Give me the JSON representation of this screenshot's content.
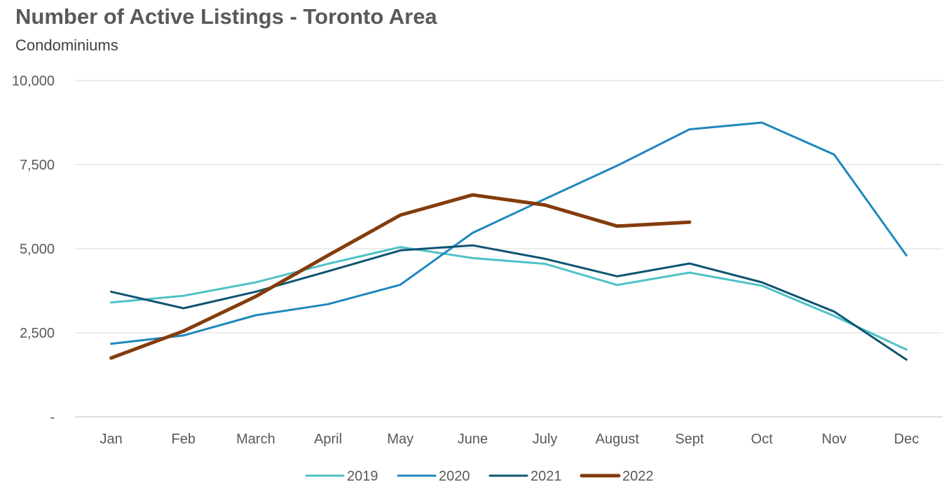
{
  "chart_data": {
    "type": "line",
    "title": "Number of Active Listings - Toronto Area",
    "subtitle": "Condominiums",
    "xlabel": "",
    "ylabel": "",
    "categories": [
      "Jan",
      "Feb",
      "March",
      "April",
      "May",
      "June",
      "July",
      "August",
      "Sept",
      "Oct",
      "Nov",
      "Dec"
    ],
    "ylim": [
      0,
      10000
    ],
    "yticks": [
      0,
      2500,
      5000,
      7500,
      10000
    ],
    "ytick_labels": [
      "-",
      "2,500",
      "5,000",
      "7,500",
      "10,000"
    ],
    "grid": true,
    "legend_position": "bottom",
    "series": [
      {
        "name": "2019",
        "color": "#4fc1c6",
        "width": 3,
        "values": [
          3400,
          3600,
          4000,
          4550,
          5050,
          4720,
          4550,
          3920,
          4290,
          3900,
          3000,
          2000
        ]
      },
      {
        "name": "2020",
        "color": "#1e88bd",
        "width": 3,
        "values": [
          2170,
          2420,
          3020,
          3350,
          3930,
          5470,
          6480,
          7470,
          8550,
          8750,
          7800,
          4800
        ]
      },
      {
        "name": "2021",
        "color": "#0d5472",
        "width": 3,
        "values": [
          3720,
          3230,
          3720,
          4330,
          4950,
          5100,
          4700,
          4180,
          4560,
          4000,
          3130,
          1700
        ]
      },
      {
        "name": "2022",
        "color": "#843c0c",
        "width": 5,
        "values": [
          1750,
          2550,
          3580,
          4800,
          6000,
          6600,
          6300,
          5670,
          5790,
          null,
          null,
          null
        ]
      }
    ]
  }
}
